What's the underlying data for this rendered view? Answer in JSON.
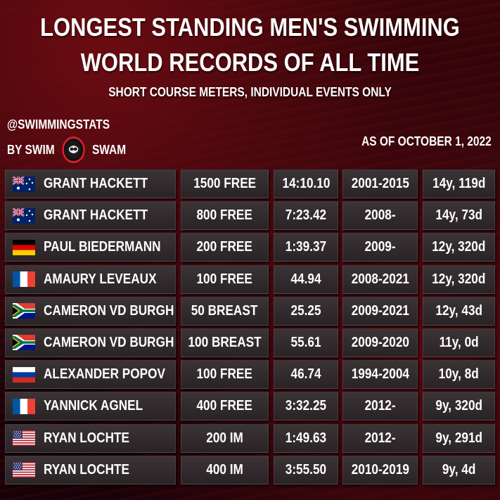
{
  "header": {
    "title_line1": "LONGEST STANDING MEN'S SWIMMING",
    "title_line2": "WORLD RECORDS OF ALL TIME",
    "subtitle": "SHORT COURSE METERS, INDIVIDUAL EVENTS ONLY",
    "handle": "@SWIMMINGSTATS",
    "by_prefix": "BY SWIM",
    "by_suffix": "SWAM",
    "as_of": "AS OF OCTOBER 1, 2022"
  },
  "colors": {
    "accent": "#d81f2a",
    "background": "#2a0308",
    "cell": "#332c2f"
  },
  "records": [
    {
      "flag": "australia-flag-icon",
      "name": "GRANT HACKETT",
      "event": "1500 FREE",
      "time": "14:10.10",
      "years": "2001-2015",
      "length": "14y, 119d"
    },
    {
      "flag": "australia-flag-icon",
      "name": "GRANT HACKETT",
      "event": "800 FREE",
      "time": "7:23.42",
      "years": "2008-",
      "length": "14y, 73d"
    },
    {
      "flag": "germany-flag-icon",
      "name": "PAUL BIEDERMANN",
      "event": "200 FREE",
      "time": "1:39.37",
      "years": "2009-",
      "length": "12y, 320d"
    },
    {
      "flag": "france-flag-icon",
      "name": "AMAURY LEVEAUX",
      "event": "100 FREE",
      "time": "44.94",
      "years": "2008-2021",
      "length": "12y, 320d"
    },
    {
      "flag": "south-africa-flag-icon",
      "name": "CAMERON VD BURGH",
      "event": "50 BREAST",
      "time": "25.25",
      "years": "2009-2021",
      "length": "12y, 43d"
    },
    {
      "flag": "south-africa-flag-icon",
      "name": "CAMERON VD BURGH",
      "event": "100 BREAST",
      "time": "55.61",
      "years": "2009-2020",
      "length": "11y, 0d"
    },
    {
      "flag": "russia-flag-icon",
      "name": "ALEXANDER POPOV",
      "event": "100 FREE",
      "time": "46.74",
      "years": "1994-2004",
      "length": "10y, 8d"
    },
    {
      "flag": "france-flag-icon",
      "name": "YANNICK AGNEL",
      "event": "400 FREE",
      "time": "3:32.25",
      "years": "2012-",
      "length": "9y, 320d"
    },
    {
      "flag": "usa-flag-icon",
      "name": "RYAN LOCHTE",
      "event": "200 IM",
      "time": "1:49.63",
      "years": "2012-",
      "length": "9y, 291d"
    },
    {
      "flag": "usa-flag-icon",
      "name": "RYAN LOCHTE",
      "event": "400 IM",
      "time": "3:55.50",
      "years": "2010-2019",
      "length": "9y, 4d"
    }
  ]
}
